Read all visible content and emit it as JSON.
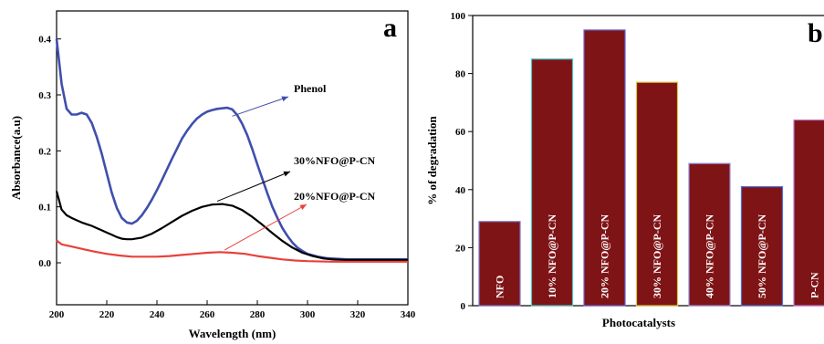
{
  "chart_data": [
    {
      "type": "line",
      "panel_label": "a",
      "xlabel": "Wavelength (nm)",
      "ylabel": "Absorbance(a.u)",
      "xlim": [
        200,
        340
      ],
      "ylim": [
        -0.075,
        0.45
      ],
      "xticks": [
        "200",
        "220",
        "240",
        "260",
        "280",
        "300",
        "320",
        "340"
      ],
      "yticks": [
        "0.0",
        "0.1",
        "0.2",
        "0.3",
        "0.4"
      ],
      "colors": {
        "phenol": "#3f4fae",
        "nfo30": "#000000",
        "nfo20": "#e8413a"
      },
      "series": [
        {
          "name": "Phenol",
          "color": "#3f4fae",
          "x": [
            200,
            202,
            204,
            206,
            208,
            210,
            212,
            214,
            216,
            218,
            220,
            222,
            224,
            226,
            228,
            230,
            232,
            234,
            236,
            238,
            240,
            242,
            244,
            246,
            248,
            250,
            252,
            254,
            256,
            258,
            260,
            262,
            264,
            266,
            268,
            270,
            272,
            274,
            276,
            278,
            280,
            282,
            284,
            286,
            288,
            290,
            292,
            294,
            296,
            298,
            300,
            304,
            308,
            312,
            316,
            320,
            325,
            330,
            335,
            340
          ],
          "y": [
            0.4,
            0.32,
            0.275,
            0.265,
            0.265,
            0.268,
            0.265,
            0.25,
            0.225,
            0.195,
            0.16,
            0.125,
            0.098,
            0.08,
            0.072,
            0.07,
            0.075,
            0.085,
            0.098,
            0.113,
            0.13,
            0.148,
            0.167,
            0.186,
            0.204,
            0.222,
            0.236,
            0.248,
            0.258,
            0.265,
            0.27,
            0.273,
            0.275,
            0.276,
            0.277,
            0.274,
            0.264,
            0.248,
            0.228,
            0.203,
            0.176,
            0.15,
            0.124,
            0.1,
            0.08,
            0.062,
            0.048,
            0.036,
            0.027,
            0.021,
            0.016,
            0.011,
            0.008,
            0.007,
            0.006,
            0.006,
            0.006,
            0.006,
            0.006,
            0.006
          ]
        },
        {
          "name": "30%NFO@P-CN",
          "color": "#000000",
          "x": [
            200,
            202,
            204,
            206,
            208,
            210,
            212,
            214,
            216,
            218,
            220,
            222,
            224,
            226,
            228,
            230,
            234,
            238,
            242,
            246,
            250,
            254,
            258,
            262,
            266,
            270,
            274,
            278,
            282,
            286,
            290,
            294,
            298,
            302,
            306,
            310,
            315,
            320,
            330,
            340
          ],
          "y": [
            0.128,
            0.095,
            0.085,
            0.08,
            0.076,
            0.072,
            0.069,
            0.066,
            0.062,
            0.058,
            0.054,
            0.05,
            0.046,
            0.043,
            0.042,
            0.042,
            0.045,
            0.052,
            0.062,
            0.073,
            0.084,
            0.093,
            0.1,
            0.104,
            0.105,
            0.102,
            0.094,
            0.082,
            0.068,
            0.053,
            0.039,
            0.027,
            0.018,
            0.012,
            0.008,
            0.006,
            0.005,
            0.005,
            0.005,
            0.005
          ]
        },
        {
          "name": "20%NFO@P-CN",
          "color": "#e8413a",
          "x": [
            200,
            202,
            206,
            210,
            215,
            220,
            225,
            230,
            235,
            240,
            245,
            250,
            255,
            260,
            265,
            270,
            275,
            280,
            285,
            290,
            295,
            300,
            310,
            320,
            330,
            340
          ],
          "y": [
            0.04,
            0.033,
            0.029,
            0.025,
            0.02,
            0.016,
            0.013,
            0.011,
            0.011,
            0.011,
            0.012,
            0.014,
            0.016,
            0.018,
            0.019,
            0.018,
            0.016,
            0.012,
            0.009,
            0.006,
            0.004,
            0.003,
            0.002,
            0.002,
            0.002,
            0.002
          ]
        }
      ],
      "annotations": [
        "Phenol",
        "30%NFO@P-CN",
        "20%NFO@P-CN"
      ]
    },
    {
      "type": "bar",
      "panel_label": "b",
      "xlabel": "Photocatalysts",
      "ylabel": "% of degradation",
      "ylim": [
        0,
        100
      ],
      "yticks": [
        "0",
        "20",
        "40",
        "60",
        "80",
        "100"
      ],
      "bar_color": "#7f1417",
      "edge_colors": [
        "#7a74c8",
        "#4fc3c0",
        "#6a5fd0",
        "#e0c940",
        "#9b8ad8",
        "#4c6fd8",
        "#c07ad0"
      ],
      "categories": [
        "NFO",
        "10% NFO@P-CN",
        "20% NFO@P-CN",
        "30% NFO@P-CN",
        "40% NFO@P-CN",
        "50% NFO@P-CN",
        "P-CN"
      ],
      "values": [
        29,
        85,
        95,
        77,
        49,
        41,
        64
      ]
    }
  ]
}
